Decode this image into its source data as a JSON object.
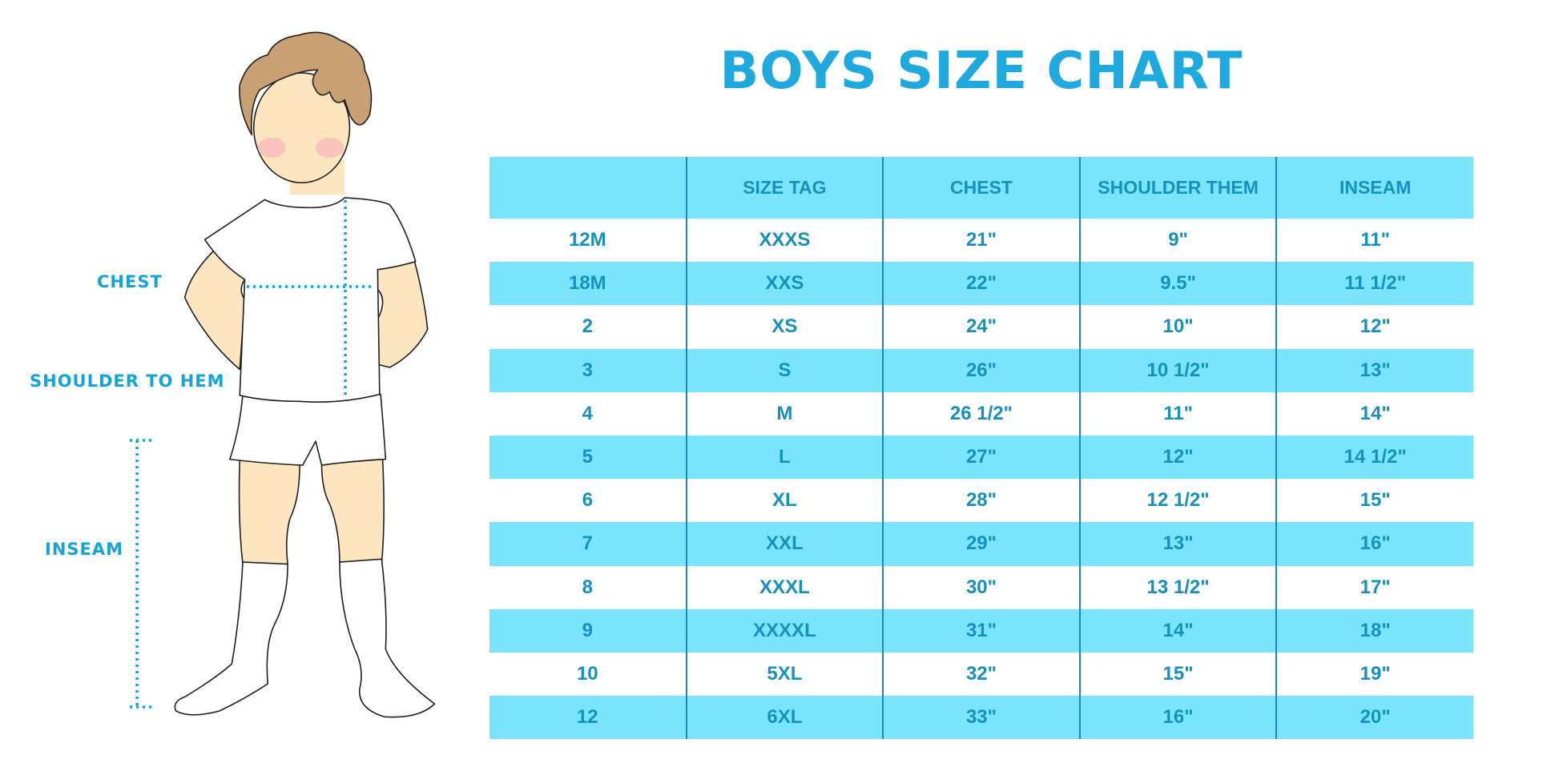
{
  "title": "BOYS SIZE CHART",
  "measure_labels": {
    "chest": "CHEST",
    "shoulder": "SHOULDER TO HEM",
    "inseam": "INSEAM"
  },
  "colors": {
    "title": "#1faadf",
    "row_fill": "#7ae4fd",
    "cell_text": "#1591bd",
    "measure_line": "#12a4dc"
  },
  "table": {
    "headers": [
      "",
      "SIZE TAG",
      "CHEST",
      "SHOULDER THEM",
      "INSEAM"
    ],
    "rows": [
      [
        "12M",
        "XXXS",
        "21\"",
        "9\"",
        "11\""
      ],
      [
        "18M",
        "XXS",
        "22\"",
        "9.5\"",
        "11 1/2\""
      ],
      [
        "2",
        "XS",
        "24\"",
        "10\"",
        "12\""
      ],
      [
        "3",
        "S",
        "26\"",
        "10 1/2\"",
        "13\""
      ],
      [
        "4",
        "M",
        "26 1/2\"",
        "11\"",
        "14\""
      ],
      [
        "5",
        "L",
        "27\"",
        "12\"",
        "14 1/2\""
      ],
      [
        "6",
        "XL",
        "28\"",
        "12 1/2\"",
        "15\""
      ],
      [
        "7",
        "XXL",
        "29\"",
        "13\"",
        "16\""
      ],
      [
        "8",
        "XXXL",
        "30\"",
        "13 1/2\"",
        "17\""
      ],
      [
        "9",
        "XXXXL",
        "31\"",
        "14\"",
        "18\""
      ],
      [
        "10",
        "5XL",
        "32\"",
        "15\"",
        "19\""
      ],
      [
        "12",
        "6XL",
        "33\"",
        "16\"",
        "20\""
      ]
    ]
  }
}
